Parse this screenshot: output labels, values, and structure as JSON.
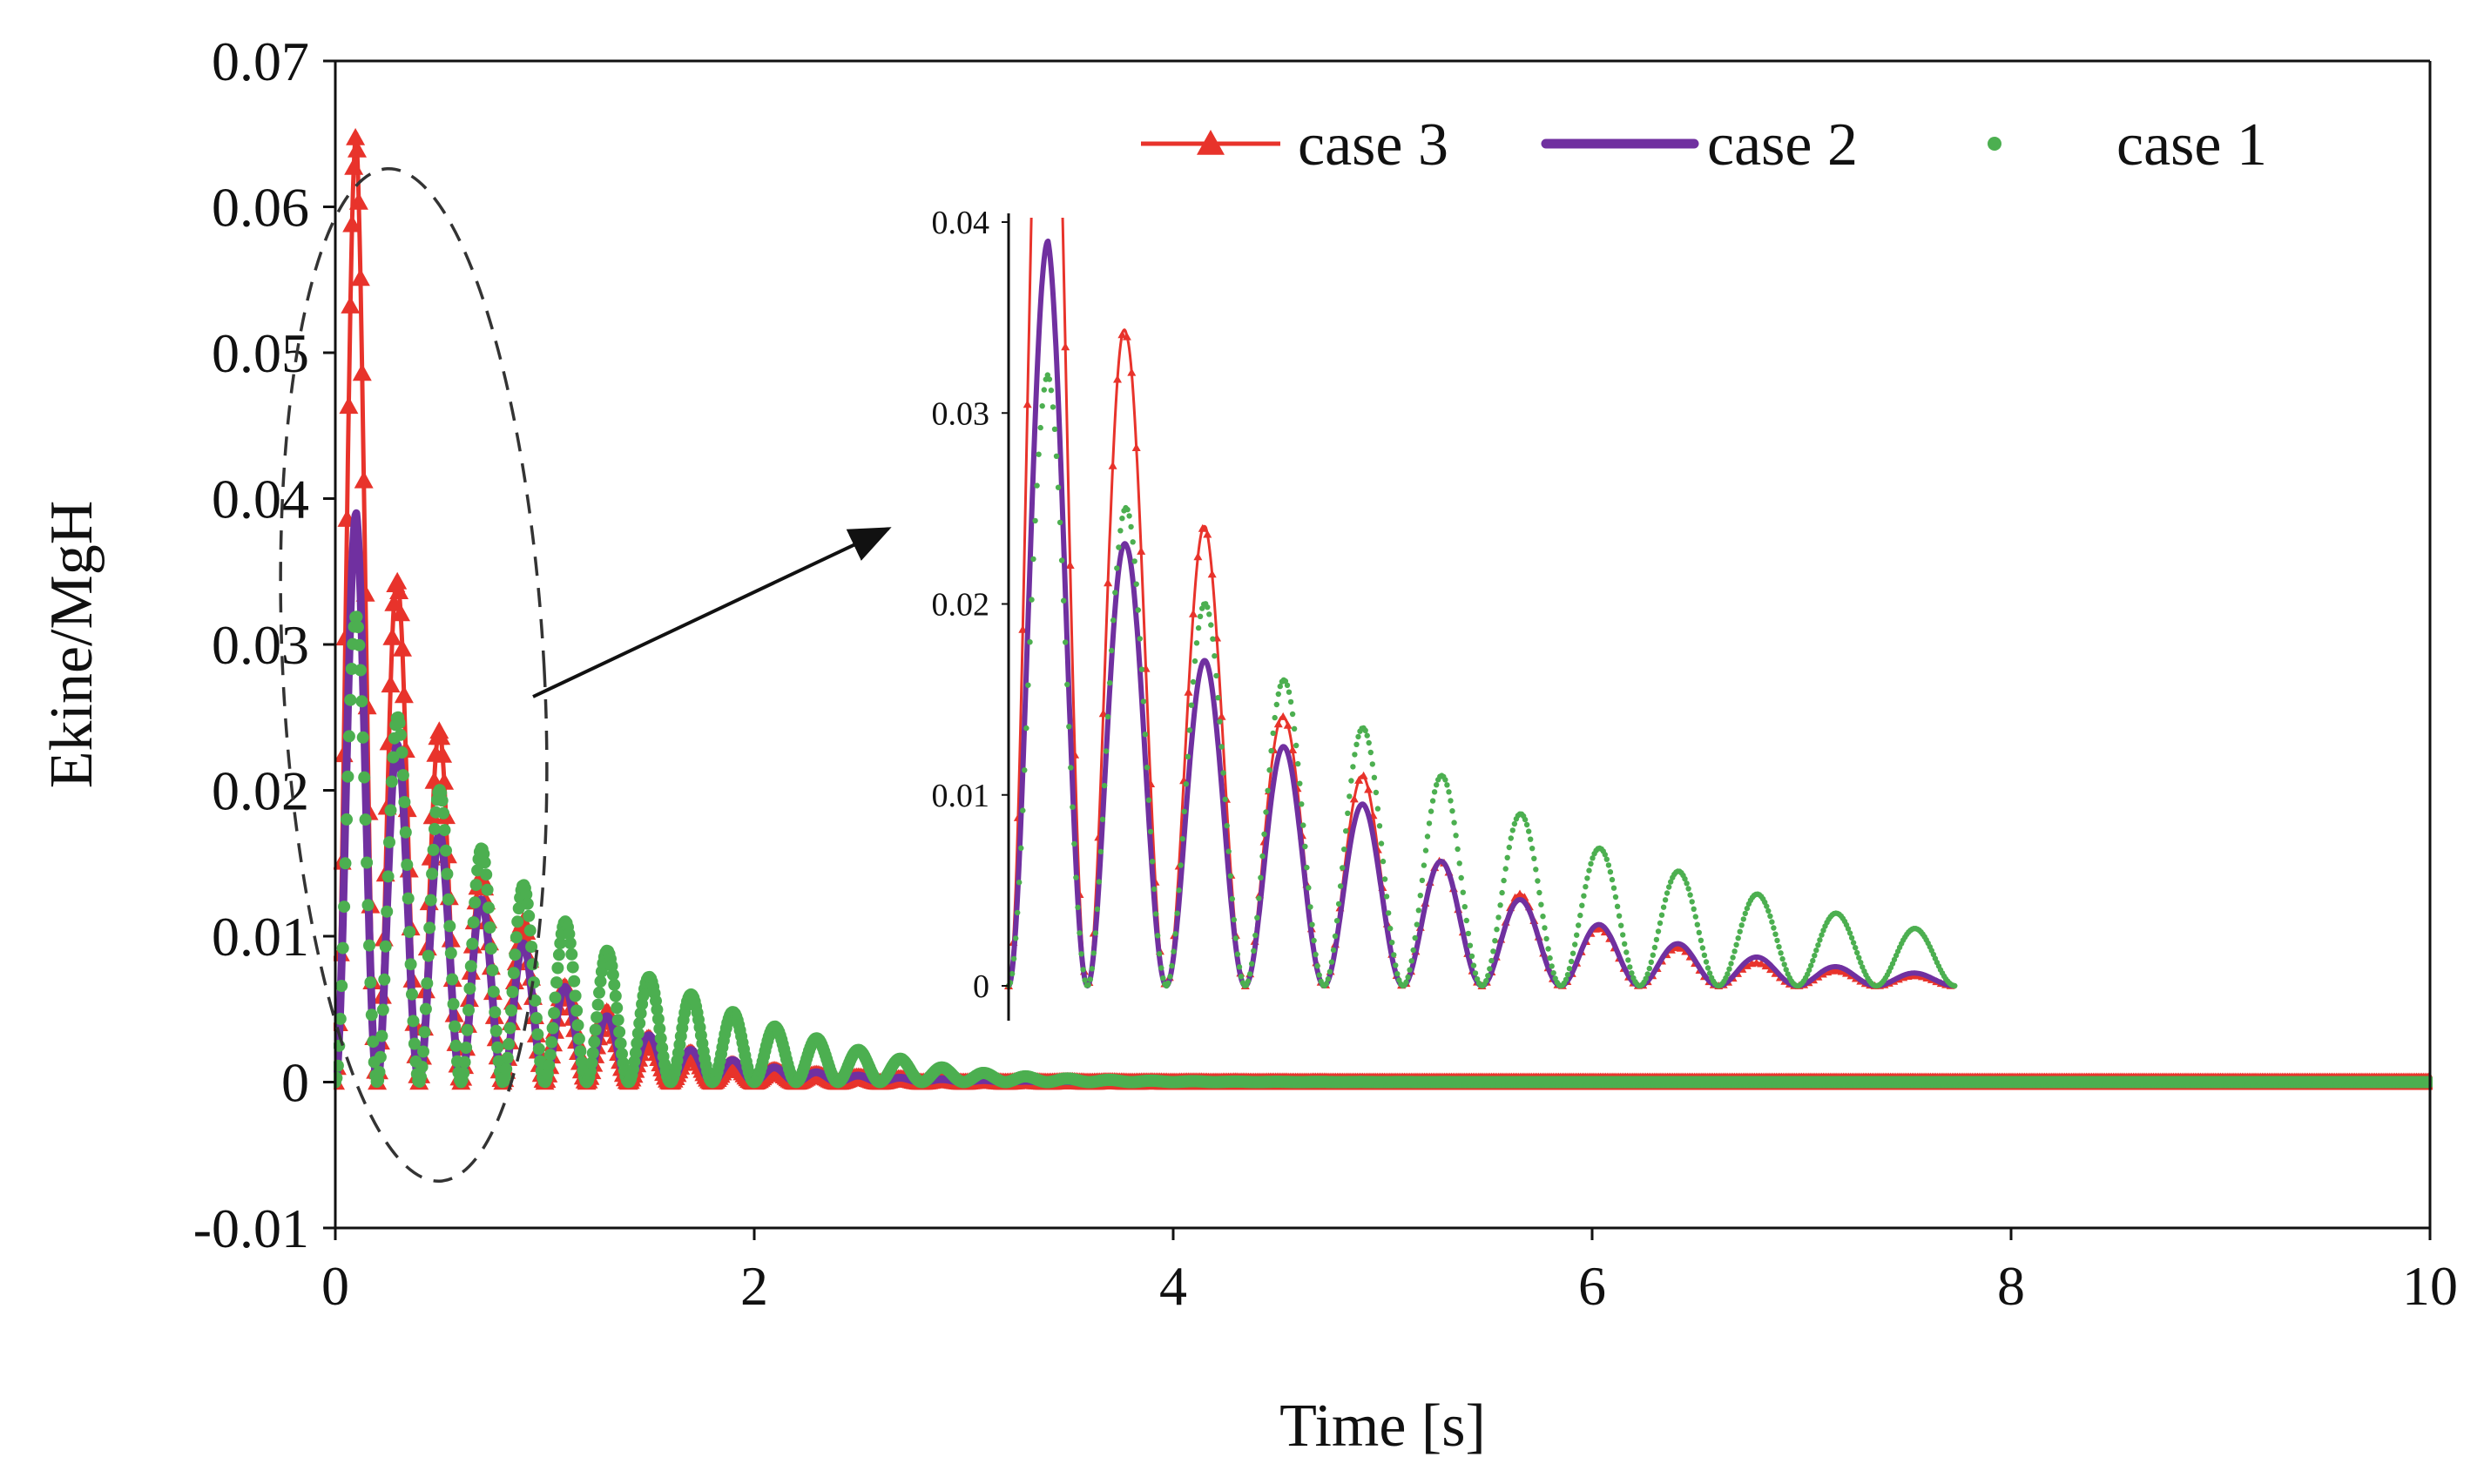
{
  "chart_data": {
    "type": "line",
    "title": "",
    "xlabel": "Time [s]",
    "ylabel": "Ekine/MgH",
    "xlim": [
      0,
      10
    ],
    "ylim": [
      -0.01,
      0.07
    ],
    "x_ticks": [
      0,
      2,
      4,
      6,
      8,
      10
    ],
    "x_tick_labels": [
      "0",
      "2",
      "4",
      "6",
      "8",
      "10"
    ],
    "y_ticks": [
      -0.01,
      0,
      0.01,
      0.02,
      0.03,
      0.04,
      0.05,
      0.06,
      0.07
    ],
    "y_tick_labels": [
      "-0.01",
      "0",
      "0.01",
      "0.02",
      "0.03",
      "0.04",
      "0.05",
      "0.06",
      "0.07"
    ],
    "grid": false,
    "legend_position": "top-right",
    "series": [
      {
        "name": "case 3",
        "color": "#e8332b",
        "marker": "triangle",
        "oscillation_period_s": 0.2,
        "peak_times_s": [
          0.1,
          0.3,
          0.5,
          0.7,
          0.9,
          1.1,
          1.3,
          1.5,
          1.7,
          1.9,
          2.1
        ],
        "peak_values": [
          0.065,
          0.034,
          0.024,
          0.014,
          0.011,
          0.0065,
          0.0048,
          0.003,
          0.002,
          0.0012,
          0.0008
        ]
      },
      {
        "name": "case 2",
        "color": "#7030a0",
        "marker": "none",
        "oscillation_period_s": 0.2,
        "peak_times_s": [
          0.1,
          0.3,
          0.5,
          0.7,
          0.9,
          1.1,
          1.3,
          1.5,
          1.7,
          1.9,
          2.1
        ],
        "peak_values": [
          0.039,
          0.023,
          0.017,
          0.0125,
          0.0095,
          0.0065,
          0.0045,
          0.0032,
          0.0022,
          0.0015,
          0.001
        ]
      },
      {
        "name": "case 1",
        "color": "#4caf50",
        "marker": "dot",
        "oscillation_period_s": 0.2,
        "peak_times_s": [
          0.1,
          0.3,
          0.5,
          0.7,
          0.9,
          1.1,
          1.3,
          1.5,
          1.7,
          1.9,
          2.1,
          2.3,
          2.5,
          2.7,
          2.9
        ],
        "peak_values": [
          0.032,
          0.025,
          0.02,
          0.016,
          0.0135,
          0.011,
          0.009,
          0.0072,
          0.006,
          0.0048,
          0.0038,
          0.003,
          0.0022,
          0.0016,
          0.001
        ]
      }
    ],
    "annotations": [
      {
        "type": "dashed-ellipse",
        "target": "first 1 s of oscillations",
        "x_range": [
          0.0,
          1.0
        ]
      },
      {
        "type": "arrow",
        "from": "dashed ellipse",
        "to": "inset zoom"
      }
    ],
    "inset": {
      "type": "line",
      "description": "zoom of first oscillations",
      "xlim": [
        0,
        2.4
      ],
      "ylim": [
        0,
        0.04
      ],
      "y_ticks": [
        0,
        0.01,
        0.02,
        0.03,
        0.04
      ],
      "y_tick_labels": [
        "0",
        "0.01",
        "0.02",
        "0.03",
        "0.04"
      ]
    }
  }
}
